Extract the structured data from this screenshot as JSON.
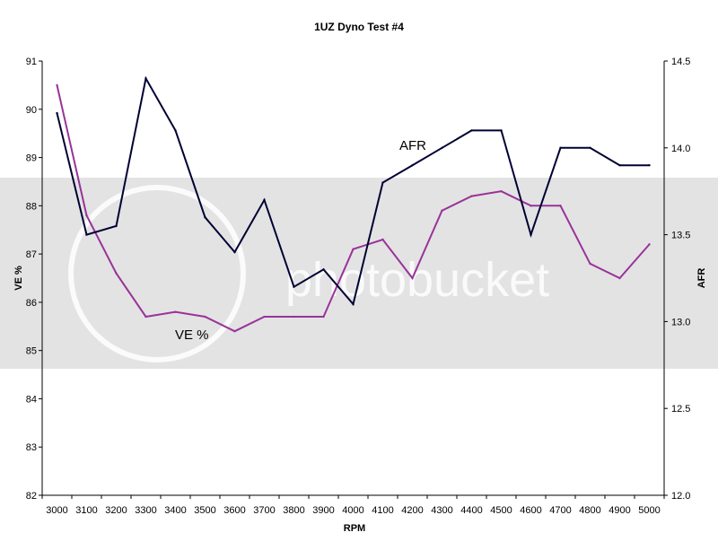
{
  "chart_data": {
    "type": "line",
    "title": "1UZ Dyno Test #4",
    "xlabel": "RPM",
    "ylabel_left": "VE %",
    "ylabel_right": "AFR",
    "x": [
      3000,
      3100,
      3200,
      3300,
      3400,
      3500,
      3600,
      3700,
      3800,
      3900,
      4000,
      4100,
      4200,
      4300,
      4400,
      4500,
      4600,
      4700,
      4800,
      4900,
      5000
    ],
    "x_tick_labels": [
      "3000",
      "3100",
      "3200",
      "3300",
      "3400",
      "3500",
      "3600",
      "3700",
      "3800",
      "3900",
      "4000",
      "4100",
      "4200",
      "4300",
      "4400",
      "4500",
      "4600",
      "4700",
      "4800",
      "4900",
      "5000"
    ],
    "y_left_ticks": [
      "82",
      "83",
      "84",
      "85",
      "86",
      "87",
      "88",
      "89",
      "90",
      "91"
    ],
    "y_right_ticks": [
      "12.0",
      "12.5",
      "13.0",
      "13.5",
      "14.0",
      "14.5"
    ],
    "ylim_left": [
      82,
      91
    ],
    "ylim_right": [
      12.0,
      14.5
    ],
    "grid": false,
    "legend": "none",
    "series": [
      {
        "name": "VE %",
        "axis": "left",
        "color": "#993399",
        "values": [
          90.5,
          87.8,
          86.6,
          85.7,
          85.8,
          85.7,
          85.4,
          85.7,
          85.7,
          85.7,
          87.1,
          87.3,
          86.5,
          87.9,
          88.2,
          88.3,
          88.0,
          88.0,
          86.8,
          86.5,
          87.2
        ]
      },
      {
        "name": "AFR",
        "axis": "right",
        "color": "#000033",
        "values": [
          14.2,
          13.5,
          13.55,
          14.4,
          14.1,
          13.6,
          13.4,
          13.7,
          13.2,
          13.3,
          13.1,
          13.8,
          13.9,
          14.0,
          14.1,
          14.1,
          13.5,
          14.0,
          14.0,
          13.9,
          13.9
        ]
      }
    ],
    "annotations": [
      "AFR",
      "VE %"
    ]
  },
  "watermark": {
    "text": "photobucket",
    "band_color": "#e3e3e3"
  }
}
